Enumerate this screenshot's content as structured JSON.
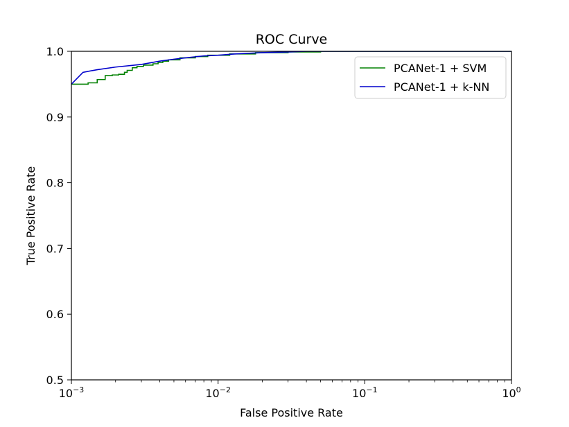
{
  "chart_data": {
    "type": "line",
    "title": "ROC Curve",
    "xlabel": "False Positive Rate",
    "ylabel": "True Positive Rate",
    "xscale": "log",
    "xlim": [
      0.001,
      1
    ],
    "ylim": [
      0.5,
      1.0
    ],
    "x_ticks": [
      {
        "value": 0.001,
        "base": "10",
        "exp": "−3"
      },
      {
        "value": 0.01,
        "base": "10",
        "exp": "−2"
      },
      {
        "value": 0.1,
        "base": "10",
        "exp": "−1"
      },
      {
        "value": 1,
        "base": "10",
        "exp": "0"
      }
    ],
    "y_ticks": [
      {
        "value": 0.5,
        "label": "0.5"
      },
      {
        "value": 0.6,
        "label": "0.6"
      },
      {
        "value": 0.7,
        "label": "0.7"
      },
      {
        "value": 0.8,
        "label": "0.8"
      },
      {
        "value": 0.9,
        "label": "0.9"
      },
      {
        "value": 1.0,
        "label": "1.0"
      }
    ],
    "grid": false,
    "legend": {
      "placement": "top-right"
    },
    "series": [
      {
        "name": "PCANet-1 + SVM",
        "color": "#008000",
        "step": true,
        "points": [
          [
            0.001,
            0.95
          ],
          [
            0.0013,
            0.95
          ],
          [
            0.0013,
            0.952
          ],
          [
            0.0015,
            0.952
          ],
          [
            0.0015,
            0.957
          ],
          [
            0.0017,
            0.957
          ],
          [
            0.0017,
            0.963
          ],
          [
            0.0019,
            0.963
          ],
          [
            0.0019,
            0.964
          ],
          [
            0.0021,
            0.964
          ],
          [
            0.0021,
            0.965
          ],
          [
            0.0023,
            0.965
          ],
          [
            0.0023,
            0.968
          ],
          [
            0.0024,
            0.968
          ],
          [
            0.0024,
            0.971
          ],
          [
            0.0026,
            0.971
          ],
          [
            0.0026,
            0.975
          ],
          [
            0.0028,
            0.975
          ],
          [
            0.0028,
            0.977
          ],
          [
            0.0031,
            0.977
          ],
          [
            0.0031,
            0.979
          ],
          [
            0.0036,
            0.979
          ],
          [
            0.0036,
            0.981
          ],
          [
            0.0039,
            0.981
          ],
          [
            0.0039,
            0.983
          ],
          [
            0.0042,
            0.983
          ],
          [
            0.0042,
            0.985
          ],
          [
            0.0046,
            0.985
          ],
          [
            0.0046,
            0.987
          ],
          [
            0.0055,
            0.987
          ],
          [
            0.0055,
            0.99
          ],
          [
            0.007,
            0.99
          ],
          [
            0.007,
            0.992
          ],
          [
            0.0085,
            0.992
          ],
          [
            0.0085,
            0.994
          ],
          [
            0.012,
            0.994
          ],
          [
            0.012,
            0.996
          ],
          [
            0.018,
            0.996
          ],
          [
            0.018,
            0.998
          ],
          [
            0.03,
            0.998
          ],
          [
            0.03,
            0.999
          ],
          [
            0.05,
            0.999
          ],
          [
            0.05,
            1.0
          ],
          [
            1,
            1.0
          ]
        ]
      },
      {
        "name": "PCANet-1 + k-NN",
        "color": "#0000cc",
        "step": false,
        "points": [
          [
            0.001,
            0.95
          ],
          [
            0.0012,
            0.968
          ],
          [
            0.0015,
            0.972
          ],
          [
            0.002,
            0.976
          ],
          [
            0.003,
            0.98
          ],
          [
            0.004,
            0.985
          ],
          [
            0.005,
            0.988
          ],
          [
            0.006,
            0.99
          ],
          [
            0.008,
            0.993
          ],
          [
            0.01,
            0.994
          ],
          [
            0.013,
            0.996
          ],
          [
            0.02,
            0.998
          ],
          [
            0.03,
            0.999
          ],
          [
            0.04,
            1.0
          ],
          [
            1,
            1.0
          ]
        ]
      }
    ]
  }
}
